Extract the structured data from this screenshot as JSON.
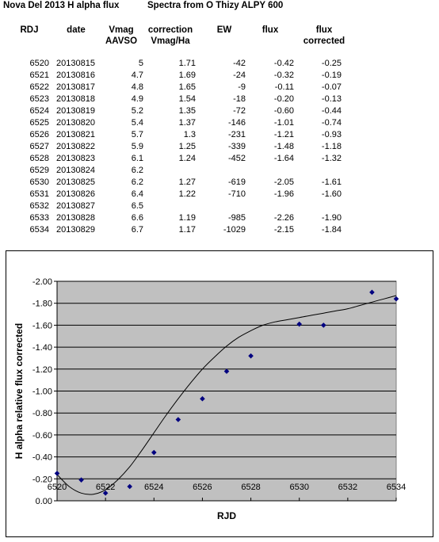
{
  "header": {
    "title": "Nova Del 2013 H alpha flux",
    "subtitle": "Spectra from O Thizy ALPY 600"
  },
  "table": {
    "columns": [
      {
        "l1": "RDJ",
        "l2": ""
      },
      {
        "l1": "date",
        "l2": ""
      },
      {
        "l1": "Vmag",
        "l2": "AAVSO"
      },
      {
        "l1": "correction",
        "l2": "Vmag/Ha"
      },
      {
        "l1": "EW",
        "l2": ""
      },
      {
        "l1": "flux",
        "l2": ""
      },
      {
        "l1": "flux",
        "l2": "corrected"
      }
    ],
    "rows": [
      [
        "6520",
        "20130815",
        "5",
        "1.71",
        "-42",
        "-0.42",
        "-0.25"
      ],
      [
        "6521",
        "20130816",
        "4.7",
        "1.69",
        "-24",
        "-0.32",
        "-0.19"
      ],
      [
        "6522",
        "20130817",
        "4.8",
        "1.65",
        "-9",
        "-0.11",
        "-0.07"
      ],
      [
        "6523",
        "20130818",
        "4.9",
        "1.54",
        "-18",
        "-0.20",
        "-0.13"
      ],
      [
        "6524",
        "20130819",
        "5.2",
        "1.35",
        "-72",
        "-0.60",
        "-0.44"
      ],
      [
        "6525",
        "20130820",
        "5.4",
        "1.37",
        "-146",
        "-1.01",
        "-0.74"
      ],
      [
        "6526",
        "20130821",
        "5.7",
        "1.3",
        "-231",
        "-1.21",
        "-0.93"
      ],
      [
        "6527",
        "20130822",
        "5.9",
        "1.25",
        "-339",
        "-1.48",
        "-1.18"
      ],
      [
        "6528",
        "20130823",
        "6.1",
        "1.24",
        "-452",
        "-1.64",
        "-1.32"
      ],
      [
        "6529",
        "20130824",
        "6.2",
        "",
        "",
        "",
        ""
      ],
      [
        "6530",
        "20130825",
        "6.2",
        "1.27",
        "-619",
        "-2.05",
        "-1.61"
      ],
      [
        "6531",
        "20130826",
        "6.4",
        "1.22",
        "-710",
        "-1.96",
        "-1.60"
      ],
      [
        "6532",
        "20130827",
        "6.5",
        "",
        "",
        "",
        ""
      ],
      [
        "6533",
        "20130828",
        "6.6",
        "1.19",
        "-985",
        "-2.26",
        "-1.90"
      ],
      [
        "6534",
        "20130829",
        "6.7",
        "1.17",
        "-1029",
        "-2.15",
        "-1.84"
      ]
    ]
  },
  "chart_data": {
    "type": "scatter",
    "title": "",
    "xlabel": "RJD",
    "ylabel": "H alpha relative flux corrected",
    "xlim": [
      6520,
      6534
    ],
    "ylim": [
      0.0,
      -2.0
    ],
    "y_reversed": true,
    "x_ticks": [
      "6520",
      "6522",
      "6524",
      "6526",
      "6528",
      "6530",
      "6532",
      "6534"
    ],
    "y_ticks": [
      "-2.00",
      "-1.80",
      "-1.60",
      "-1.40",
      "-1.20",
      "-1.00",
      "-0.80",
      "-0.60",
      "-0.40",
      "-0.20",
      "0.00"
    ],
    "grid": "horizontal",
    "plot_background": "#c0c0c0",
    "marker_color": "#000080",
    "trendline": "polynomial",
    "legend": "none",
    "series": [
      {
        "x": [
          6520,
          6521,
          6522,
          6523,
          6524,
          6525,
          6526,
          6527,
          6528,
          6530,
          6531,
          6533,
          6534
        ],
        "y": [
          -0.25,
          -0.19,
          -0.07,
          -0.13,
          -0.44,
          -0.74,
          -0.93,
          -1.18,
          -1.32,
          -1.61,
          -1.6,
          -1.9,
          -1.84
        ]
      }
    ],
    "trend_curve": {
      "x": [
        6520,
        6520.5,
        6521,
        6521.5,
        6522,
        6522.5,
        6523,
        6523.5,
        6524,
        6524.5,
        6525,
        6525.5,
        6526,
        6526.5,
        6527,
        6527.5,
        6528,
        6528.5,
        6529,
        6529.5,
        6530,
        6530.5,
        6531,
        6531.5,
        6532,
        6532.5,
        6533,
        6533.5,
        6534
      ],
      "y": [
        -0.24,
        -0.13,
        -0.07,
        -0.06,
        -0.1,
        -0.19,
        -0.31,
        -0.46,
        -0.62,
        -0.78,
        -0.93,
        -1.07,
        -1.2,
        -1.31,
        -1.41,
        -1.49,
        -1.55,
        -1.6,
        -1.63,
        -1.65,
        -1.67,
        -1.69,
        -1.71,
        -1.73,
        -1.75,
        -1.78,
        -1.81,
        -1.84,
        -1.87
      ]
    }
  }
}
